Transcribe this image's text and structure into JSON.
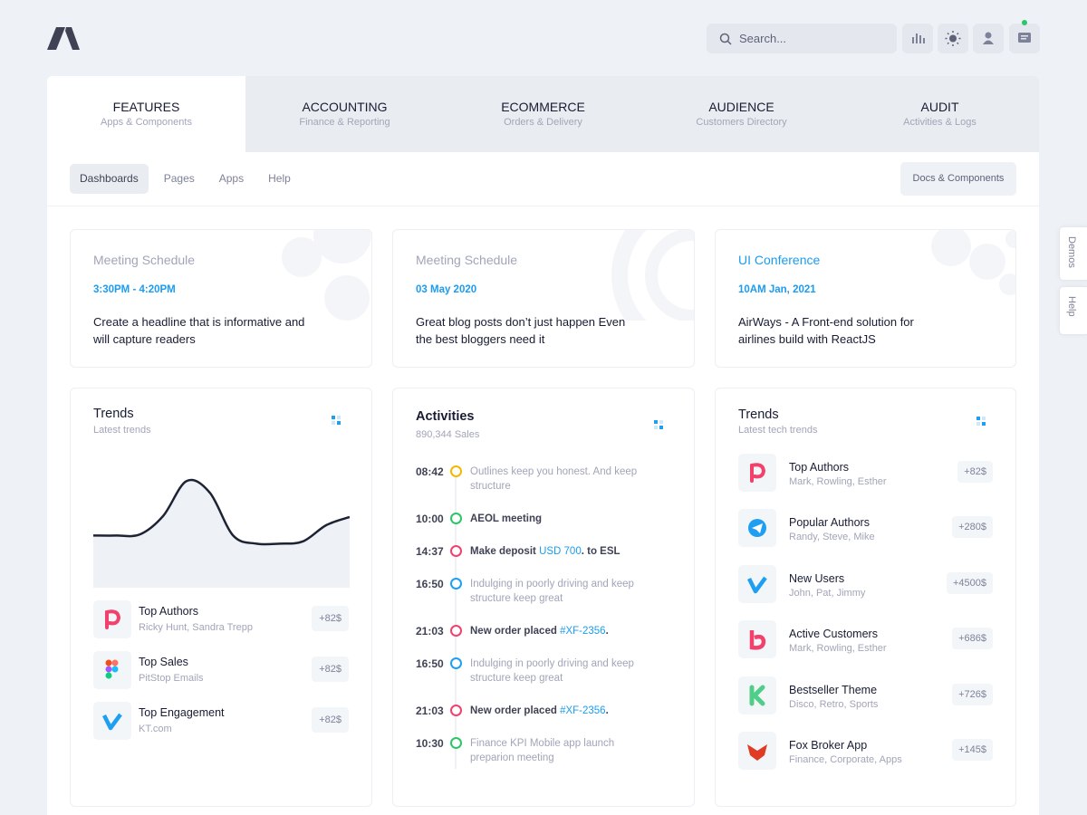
{
  "header": {
    "search_placeholder": "Search..."
  },
  "tabs": [
    {
      "title": "FEATURES",
      "subtitle": "Apps & Components"
    },
    {
      "title": "ACCOUNTING",
      "subtitle": "Finance & Reporting"
    },
    {
      "title": "ECOMMERCE",
      "subtitle": "Orders & Delivery"
    },
    {
      "title": "AUDIENCE",
      "subtitle": "Customers Directory"
    },
    {
      "title": "AUDIT",
      "subtitle": "Activities & Logs"
    }
  ],
  "subnav": {
    "items": [
      "Dashboards",
      "Pages",
      "Apps",
      "Help"
    ],
    "button": "Docs & Components"
  },
  "side_tabs": [
    "Demos",
    "Help"
  ],
  "info_cards": [
    {
      "title": "Meeting Schedule",
      "title_color": "#a1a5b7",
      "meta": "3:30PM - 4:20PM",
      "text": "Create a headline that is informative and will capture readers"
    },
    {
      "title": "Meeting Schedule",
      "title_color": "#a1a5b7",
      "meta": "03 May 2020",
      "text": "Great blog posts don’t just happen Even the best bloggers need it"
    },
    {
      "title": "UI Conference",
      "title_color": "#1b9cf0",
      "meta": "10AM Jan, 2021",
      "text": "AirWays - A Front-end solution for airlines build with ReactJS"
    }
  ],
  "trends_card": {
    "title": "Trends",
    "subtitle": "Latest trends",
    "chart": {
      "type": "line",
      "ylim": [
        0,
        100
      ],
      "values": [
        45,
        45,
        46,
        62,
        92,
        82,
        45,
        38,
        38,
        40,
        54,
        61
      ]
    },
    "items": [
      {
        "title": "Top Authors",
        "subtitle": "Ricky Hunt, Sandra Trepp",
        "badge": "+82$"
      },
      {
        "title": "Top Sales",
        "subtitle": "PitStop Emails",
        "badge": "+82$"
      },
      {
        "title": "Top Engagement",
        "subtitle": "KT.com",
        "badge": "+82$"
      }
    ]
  },
  "activities": {
    "title": "Activities",
    "subtitle": "890,344 Sales",
    "items": [
      {
        "time": "08:42",
        "color": "#f5b800",
        "muted": true,
        "text": "Outlines keep you honest. And keep structure"
      },
      {
        "time": "10:00",
        "color": "#2bc56a",
        "muted": false,
        "text": "AEOL meeting"
      },
      {
        "time": "14:37",
        "color": "#f1416c",
        "muted": false,
        "text": "Make deposit ",
        "link": "USD 700",
        "suffix": ". to ESL"
      },
      {
        "time": "16:50",
        "color": "#1e9ff2",
        "muted": true,
        "text": "Indulging in poorly driving and keep structure keep great"
      },
      {
        "time": "21:03",
        "color": "#f1416c",
        "muted": false,
        "text": "New order placed ",
        "link": "#XF-2356",
        "suffix": "."
      },
      {
        "time": "16:50",
        "color": "#1e9ff2",
        "muted": true,
        "text": "Indulging in poorly driving and keep structure keep great"
      },
      {
        "time": "21:03",
        "color": "#f1416c",
        "muted": false,
        "text": "New order placed ",
        "link": "#XF-2356",
        "suffix": "."
      },
      {
        "time": "10:30",
        "color": "#2bc56a",
        "muted": true,
        "text": "Finance KPI Mobile app launch preparion meeting"
      }
    ]
  },
  "tech_trends": {
    "title": "Trends",
    "subtitle": "Latest tech trends",
    "items": [
      {
        "title": "Top Authors",
        "subtitle": "Mark, Rowling, Esther",
        "badge": "+82$"
      },
      {
        "title": "Popular Authors",
        "subtitle": "Randy, Steve, Mike",
        "badge": "+280$"
      },
      {
        "title": "New Users",
        "subtitle": "John, Pat, Jimmy",
        "badge": "+4500$"
      },
      {
        "title": "Active Customers",
        "subtitle": "Mark, Rowling, Esther",
        "badge": "+686$"
      },
      {
        "title": "Bestseller Theme",
        "subtitle": "Disco, Retro, Sports",
        "badge": "+726$"
      },
      {
        "title": "Fox Broker App",
        "subtitle": "Finance, Corporate, Apps",
        "badge": "+145$"
      }
    ]
  }
}
